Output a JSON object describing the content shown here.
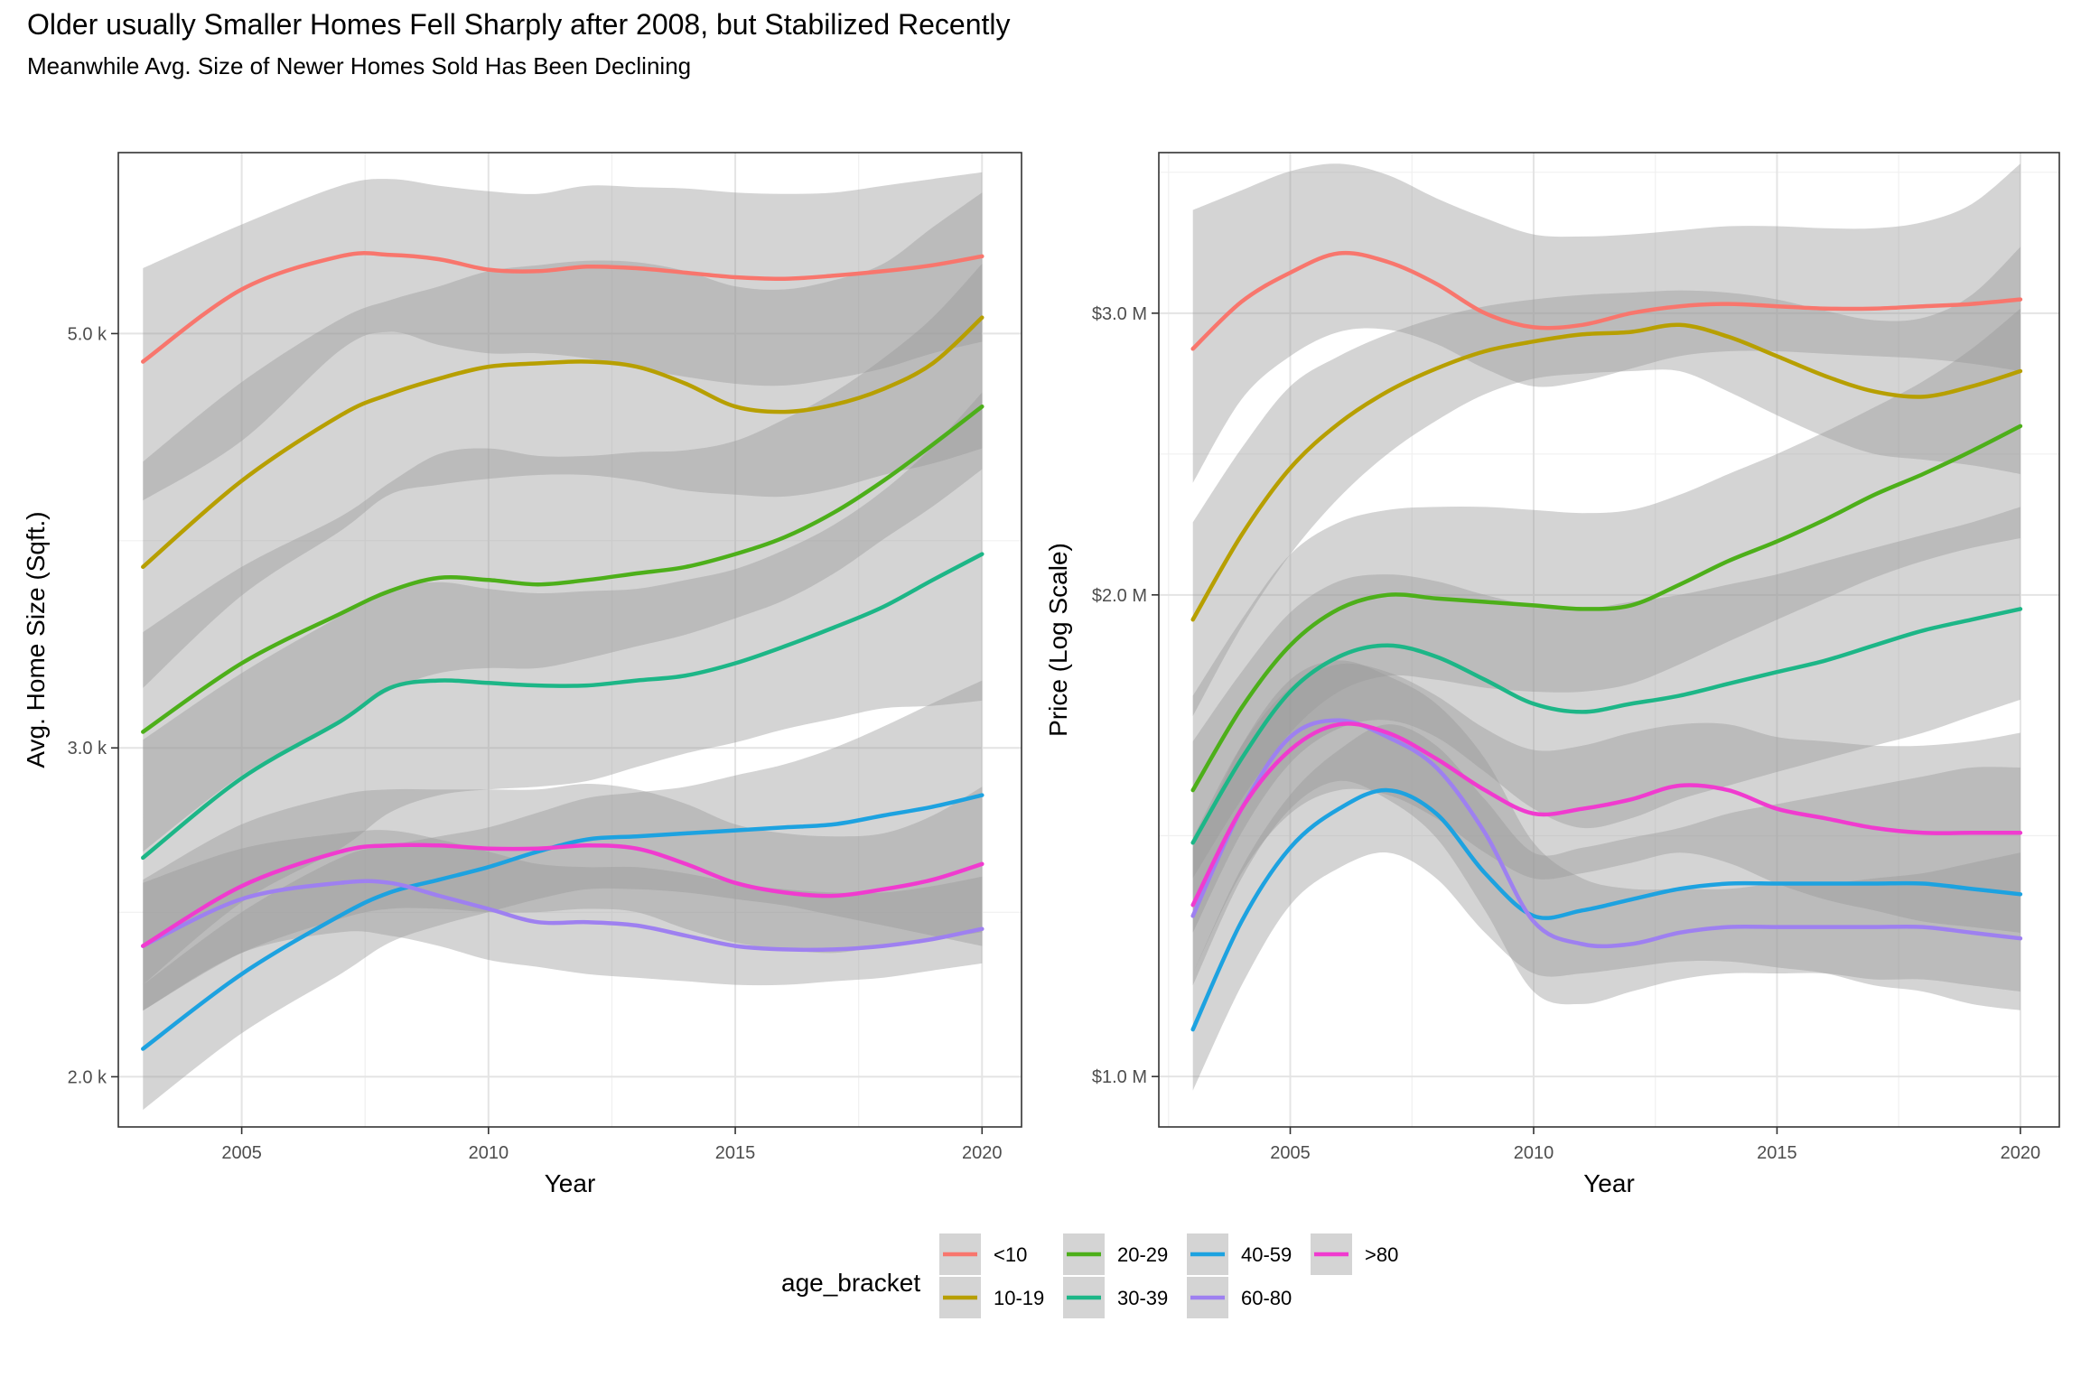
{
  "header": {
    "title": "Older usually Smaller Homes Fell Sharply after 2008, but Stabilized Recently",
    "subtitle": "Meanwhile Avg. Size of Newer Homes Sold Has Been Declining"
  },
  "legend": {
    "title": "age_bracket",
    "position": "bottom",
    "items": [
      {
        "label": "<10",
        "color": "#F8766D"
      },
      {
        "label": "10-19",
        "color": "#B79F00"
      },
      {
        "label": "20-29",
        "color": "#4DAF1A"
      },
      {
        "label": "30-39",
        "color": "#1DB687"
      },
      {
        "label": "40-59",
        "color": "#1DA2E0"
      },
      {
        "label": "60-80",
        "color": "#9E80F0"
      },
      {
        "label": ">80",
        "color": "#F03BCF"
      }
    ]
  },
  "chart_data": [
    {
      "type": "line",
      "xlabel": "Year",
      "ylabel": "Avg. Home Size (Sqft.)",
      "y_scale": "log",
      "xlim": [
        2002.5,
        2020.8
      ],
      "ylim": [
        1880,
        6250
      ],
      "xticks": [
        2005,
        2010,
        2015,
        2020
      ],
      "yticks": [
        {
          "value": 2000,
          "label": "2.0 k"
        },
        {
          "value": 3000,
          "label": "3.0 k"
        },
        {
          "value": 5000,
          "label": "5.0 k"
        }
      ],
      "x": [
        2003,
        2005,
        2007,
        2008,
        2009,
        2010,
        2011,
        2012,
        2013,
        2014,
        2015,
        2016,
        2017,
        2018,
        2019,
        2020
      ],
      "series": [
        {
          "name": "<10",
          "values": [
            4830,
            5280,
            5500,
            5510,
            5480,
            5410,
            5400,
            5430,
            5420,
            5390,
            5360,
            5350,
            5370,
            5400,
            5440,
            5500
          ],
          "lower": [
            4070,
            4380,
            4900,
            5010,
            4930,
            4880,
            4880,
            4850,
            4790,
            4740,
            4700,
            4690,
            4730,
            4790,
            4880,
            4950
          ],
          "upper": [
            5420,
            5720,
            6000,
            6050,
            6000,
            5960,
            5940,
            6000,
            5990,
            5980,
            5950,
            5940,
            5950,
            6000,
            6050,
            6100
          ]
        },
        {
          "name": "10-19",
          "values": [
            3750,
            4170,
            4520,
            4640,
            4730,
            4800,
            4820,
            4830,
            4800,
            4700,
            4570,
            4540,
            4580,
            4670,
            4820,
            5100
          ],
          "lower": [
            3230,
            3620,
            3920,
            4100,
            4150,
            4180,
            4200,
            4200,
            4170,
            4120,
            4100,
            4090,
            4130,
            4200,
            4260,
            4340
          ],
          "upper": [
            4270,
            4710,
            5090,
            5210,
            5300,
            5400,
            5440,
            5470,
            5460,
            5400,
            5300,
            5280,
            5340,
            5450,
            5700,
            5950
          ]
        },
        {
          "name": "20-29",
          "values": [
            3060,
            3330,
            3540,
            3640,
            3700,
            3690,
            3670,
            3690,
            3720,
            3750,
            3810,
            3890,
            4010,
            4170,
            4360,
            4570
          ],
          "lower": [
            2640,
            2900,
            3100,
            3220,
            3290,
            3310,
            3310,
            3350,
            3400,
            3450,
            3520,
            3600,
            3720,
            3880,
            4040,
            4230
          ],
          "upper": [
            3460,
            3750,
            3990,
            4160,
            4310,
            4340,
            4300,
            4300,
            4320,
            4330,
            4380,
            4500,
            4650,
            4850,
            5100,
            5450
          ]
        },
        {
          "name": "30-39",
          "values": [
            2620,
            2890,
            3100,
            3230,
            3260,
            3250,
            3240,
            3240,
            3260,
            3280,
            3330,
            3400,
            3480,
            3570,
            3690,
            3810
          ],
          "lower": [
            2240,
            2480,
            2650,
            2770,
            2830,
            2850,
            2860,
            2880,
            2930,
            2980,
            3020,
            3070,
            3110,
            3150,
            3160,
            3180
          ],
          "upper": [
            3030,
            3290,
            3530,
            3650,
            3680,
            3650,
            3630,
            3640,
            3650,
            3690,
            3740,
            3830,
            3950,
            4120,
            4350,
            4650
          ]
        },
        {
          "name": "40-59",
          "values": [
            2070,
            2270,
            2440,
            2510,
            2550,
            2590,
            2640,
            2680,
            2690,
            2700,
            2710,
            2720,
            2730,
            2760,
            2790,
            2830
          ],
          "lower": [
            1920,
            2110,
            2270,
            2360,
            2410,
            2450,
            2490,
            2520,
            2520,
            2510,
            2490,
            2470,
            2440,
            2410,
            2380,
            2350
          ],
          "upper": [
            2240,
            2450,
            2620,
            2660,
            2690,
            2720,
            2770,
            2820,
            2840,
            2860,
            2900,
            2940,
            3000,
            3080,
            3170,
            3260
          ]
        },
        {
          "name": "60-80",
          "values": [
            2350,
            2490,
            2540,
            2540,
            2500,
            2460,
            2420,
            2420,
            2410,
            2380,
            2350,
            2340,
            2340,
            2350,
            2370,
            2400
          ],
          "lower": [
            2170,
            2330,
            2390,
            2380,
            2350,
            2310,
            2290,
            2270,
            2260,
            2250,
            2240,
            2240,
            2250,
            2260,
            2280,
            2300
          ],
          "upper": [
            2540,
            2650,
            2700,
            2710,
            2680,
            2640,
            2600,
            2590,
            2590,
            2570,
            2540,
            2520,
            2510,
            2510,
            2530,
            2560
          ]
        },
        {
          "name": ">80",
          "values": [
            2350,
            2530,
            2640,
            2660,
            2660,
            2650,
            2650,
            2660,
            2650,
            2600,
            2540,
            2510,
            2500,
            2520,
            2550,
            2600
          ],
          "lower": [
            2170,
            2330,
            2430,
            2460,
            2460,
            2450,
            2450,
            2460,
            2450,
            2400,
            2360,
            2340,
            2330,
            2350,
            2370,
            2390
          ],
          "upper": [
            2550,
            2730,
            2830,
            2850,
            2850,
            2850,
            2850,
            2870,
            2850,
            2800,
            2730,
            2700,
            2690,
            2700,
            2760,
            2860
          ]
        }
      ]
    },
    {
      "type": "line",
      "xlabel": "Year",
      "ylabel": "Price (Log Scale)",
      "y_scale": "log",
      "xlim": [
        2002.3,
        2020.8
      ],
      "ylim": [
        0.93,
        3.78
      ],
      "xticks": [
        2005,
        2010,
        2015,
        2020
      ],
      "yticks": [
        {
          "value": 1.0,
          "label": "$1.0 M"
        },
        {
          "value": 2.0,
          "label": "$2.0 M"
        },
        {
          "value": 3.0,
          "label": "$3.0 M"
        }
      ],
      "x": [
        2003,
        2004,
        2005,
        2006,
        2007,
        2008,
        2009,
        2010,
        2011,
        2012,
        2013,
        2014,
        2015,
        2016,
        2017,
        2018,
        2019,
        2020
      ],
      "series": [
        {
          "name": "<10",
          "values": [
            2.85,
            3.05,
            3.18,
            3.27,
            3.23,
            3.13,
            3.0,
            2.94,
            2.95,
            3.0,
            3.03,
            3.04,
            3.03,
            3.02,
            3.02,
            3.03,
            3.04,
            3.06
          ],
          "lower": [
            2.35,
            2.65,
            2.82,
            2.92,
            2.93,
            2.87,
            2.77,
            2.7,
            2.72,
            2.77,
            2.82,
            2.84,
            2.84,
            2.83,
            2.82,
            2.81,
            2.79,
            2.76
          ],
          "upper": [
            3.48,
            3.58,
            3.68,
            3.72,
            3.66,
            3.54,
            3.44,
            3.36,
            3.35,
            3.36,
            3.38,
            3.4,
            3.4,
            3.39,
            3.39,
            3.42,
            3.51,
            3.72
          ]
        },
        {
          "name": "10-19",
          "values": [
            1.93,
            2.18,
            2.4,
            2.56,
            2.68,
            2.77,
            2.84,
            2.88,
            2.91,
            2.92,
            2.95,
            2.9,
            2.82,
            2.74,
            2.68,
            2.66,
            2.7,
            2.76
          ],
          "lower": [
            1.68,
            1.91,
            2.12,
            2.3,
            2.45,
            2.57,
            2.67,
            2.73,
            2.75,
            2.76,
            2.76,
            2.68,
            2.59,
            2.51,
            2.45,
            2.43,
            2.41,
            2.38
          ],
          "upper": [
            2.22,
            2.47,
            2.7,
            2.82,
            2.91,
            2.98,
            3.03,
            3.06,
            3.08,
            3.09,
            3.1,
            3.09,
            3.06,
            3.01,
            2.97,
            2.98,
            3.08,
            3.3
          ]
        },
        {
          "name": "20-29",
          "values": [
            1.51,
            1.7,
            1.86,
            1.96,
            2.0,
            1.99,
            1.98,
            1.97,
            1.96,
            1.97,
            2.03,
            2.1,
            2.16,
            2.23,
            2.31,
            2.38,
            2.46,
            2.55
          ],
          "lower": [
            1.33,
            1.49,
            1.64,
            1.74,
            1.78,
            1.77,
            1.75,
            1.74,
            1.74,
            1.76,
            1.81,
            1.87,
            1.93,
            1.99,
            2.05,
            2.1,
            2.14,
            2.17
          ],
          "upper": [
            1.73,
            1.93,
            2.12,
            2.22,
            2.26,
            2.27,
            2.27,
            2.26,
            2.25,
            2.26,
            2.31,
            2.38,
            2.45,
            2.53,
            2.62,
            2.72,
            2.85,
            3.02
          ]
        },
        {
          "name": "30-39",
          "values": [
            1.4,
            1.58,
            1.74,
            1.83,
            1.86,
            1.83,
            1.77,
            1.71,
            1.69,
            1.71,
            1.73,
            1.76,
            1.79,
            1.82,
            1.86,
            1.9,
            1.93,
            1.96
          ],
          "lower": [
            1.23,
            1.42,
            1.57,
            1.65,
            1.67,
            1.63,
            1.55,
            1.47,
            1.43,
            1.45,
            1.49,
            1.52,
            1.55,
            1.58,
            1.61,
            1.64,
            1.68,
            1.72
          ],
          "upper": [
            1.62,
            1.79,
            1.95,
            2.04,
            2.06,
            2.04,
            2.0,
            1.97,
            1.96,
            1.98,
            2.0,
            2.03,
            2.06,
            2.1,
            2.14,
            2.18,
            2.22,
            2.27
          ]
        },
        {
          "name": "40-59",
          "values": [
            1.07,
            1.25,
            1.39,
            1.47,
            1.51,
            1.46,
            1.34,
            1.26,
            1.27,
            1.29,
            1.31,
            1.32,
            1.32,
            1.32,
            1.32,
            1.32,
            1.31,
            1.3
          ],
          "lower": [
            0.98,
            1.14,
            1.28,
            1.35,
            1.38,
            1.33,
            1.23,
            1.16,
            1.16,
            1.17,
            1.18,
            1.18,
            1.17,
            1.16,
            1.14,
            1.13,
            1.11,
            1.1
          ],
          "upper": [
            1.16,
            1.35,
            1.5,
            1.6,
            1.66,
            1.61,
            1.49,
            1.38,
            1.39,
            1.41,
            1.43,
            1.46,
            1.48,
            1.5,
            1.52,
            1.54,
            1.56,
            1.56
          ]
        },
        {
          "name": "60-80",
          "values": [
            1.26,
            1.47,
            1.63,
            1.67,
            1.63,
            1.56,
            1.42,
            1.25,
            1.21,
            1.21,
            1.23,
            1.24,
            1.24,
            1.24,
            1.24,
            1.24,
            1.23,
            1.22
          ],
          "lower": [
            1.14,
            1.33,
            1.47,
            1.53,
            1.49,
            1.41,
            1.27,
            1.13,
            1.11,
            1.13,
            1.15,
            1.16,
            1.16,
            1.16,
            1.15,
            1.15,
            1.14,
            1.13
          ],
          "upper": [
            1.39,
            1.61,
            1.77,
            1.82,
            1.78,
            1.71,
            1.58,
            1.4,
            1.33,
            1.31,
            1.31,
            1.31,
            1.32,
            1.32,
            1.33,
            1.34,
            1.36,
            1.38
          ]
        },
        {
          "name": ">80",
          "values": [
            1.28,
            1.47,
            1.6,
            1.66,
            1.64,
            1.58,
            1.51,
            1.46,
            1.47,
            1.49,
            1.52,
            1.51,
            1.47,
            1.45,
            1.43,
            1.42,
            1.42,
            1.42
          ],
          "lower": [
            1.16,
            1.34,
            1.46,
            1.51,
            1.5,
            1.45,
            1.38,
            1.33,
            1.34,
            1.36,
            1.38,
            1.36,
            1.32,
            1.29,
            1.27,
            1.25,
            1.24,
            1.23
          ],
          "upper": [
            1.41,
            1.61,
            1.75,
            1.81,
            1.79,
            1.73,
            1.65,
            1.6,
            1.61,
            1.64,
            1.66,
            1.66,
            1.63,
            1.62,
            1.61,
            1.61,
            1.62,
            1.64
          ]
        }
      ]
    }
  ]
}
